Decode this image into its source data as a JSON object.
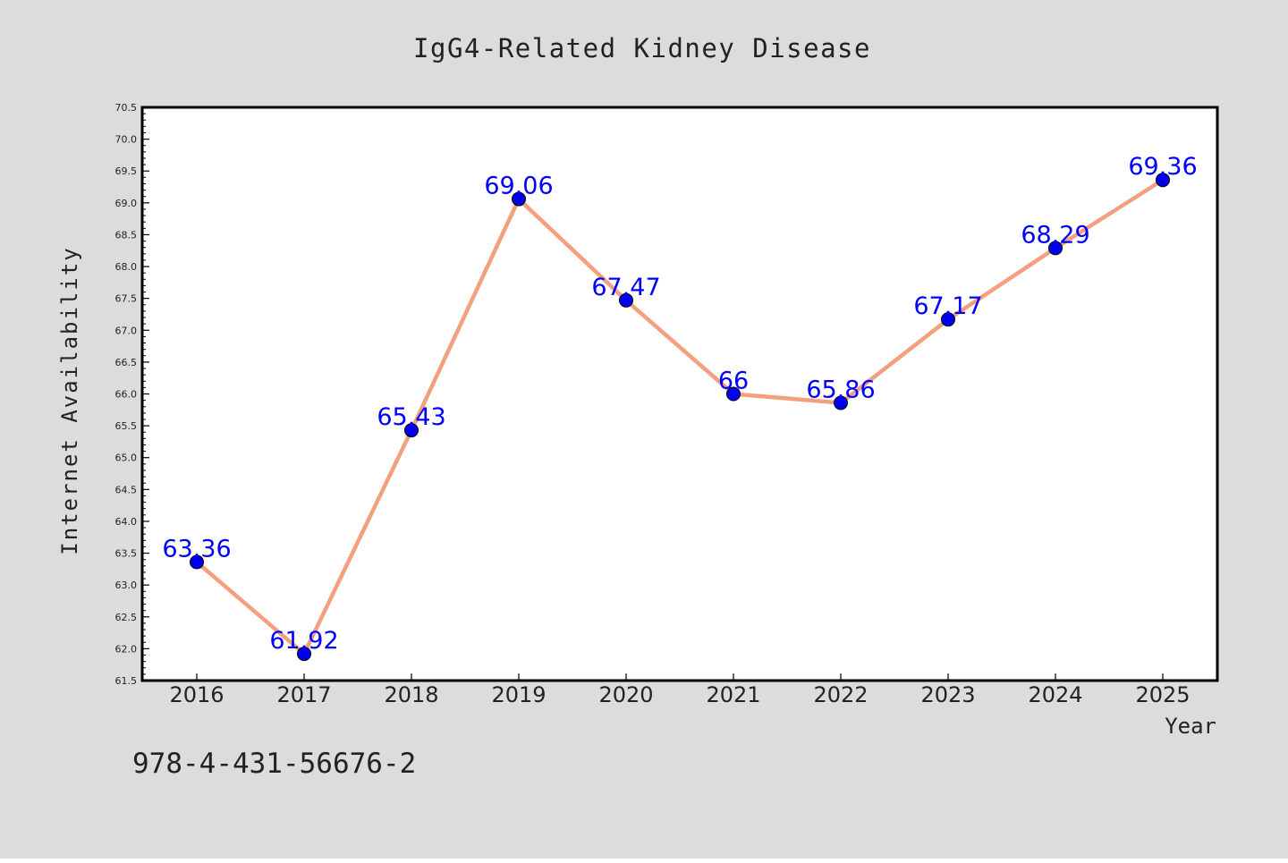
{
  "chart_data": {
    "type": "line",
    "title": "IgG4-Related Kidney Disease",
    "xlabel": "Year",
    "ylabel": "Internet Availability",
    "categories": [
      "2016",
      "2017",
      "2018",
      "2019",
      "2020",
      "2021",
      "2022",
      "2023",
      "2024",
      "2025"
    ],
    "values": [
      63.36,
      61.92,
      65.43,
      69.06,
      67.47,
      66,
      65.86,
      67.17,
      68.29,
      69.36
    ],
    "data_labels": [
      "63.36",
      "61.92",
      "65.43",
      "69.06",
      "67.47",
      "66",
      "65.86",
      "67.17",
      "68.29",
      "69.36"
    ],
    "ylim": [
      61.5,
      70.5
    ],
    "yticks": [
      "61.5",
      "62.0",
      "62.5",
      "63.0",
      "63.5",
      "64.0",
      "64.5",
      "65.0",
      "65.5",
      "66.0",
      "66.5",
      "67.0",
      "67.5",
      "68.0",
      "68.5",
      "69.0",
      "69.5",
      "70.0",
      "70.5"
    ],
    "grid": false,
    "legend": "none",
    "annotation": "978-4-431-56676-2",
    "colors": {
      "background": "#dcdcdc",
      "plot_area": "#ffffff",
      "line": "#f4a07e",
      "marker": "#0000ee",
      "data_label": "#0000ff",
      "text": "#222222"
    }
  }
}
